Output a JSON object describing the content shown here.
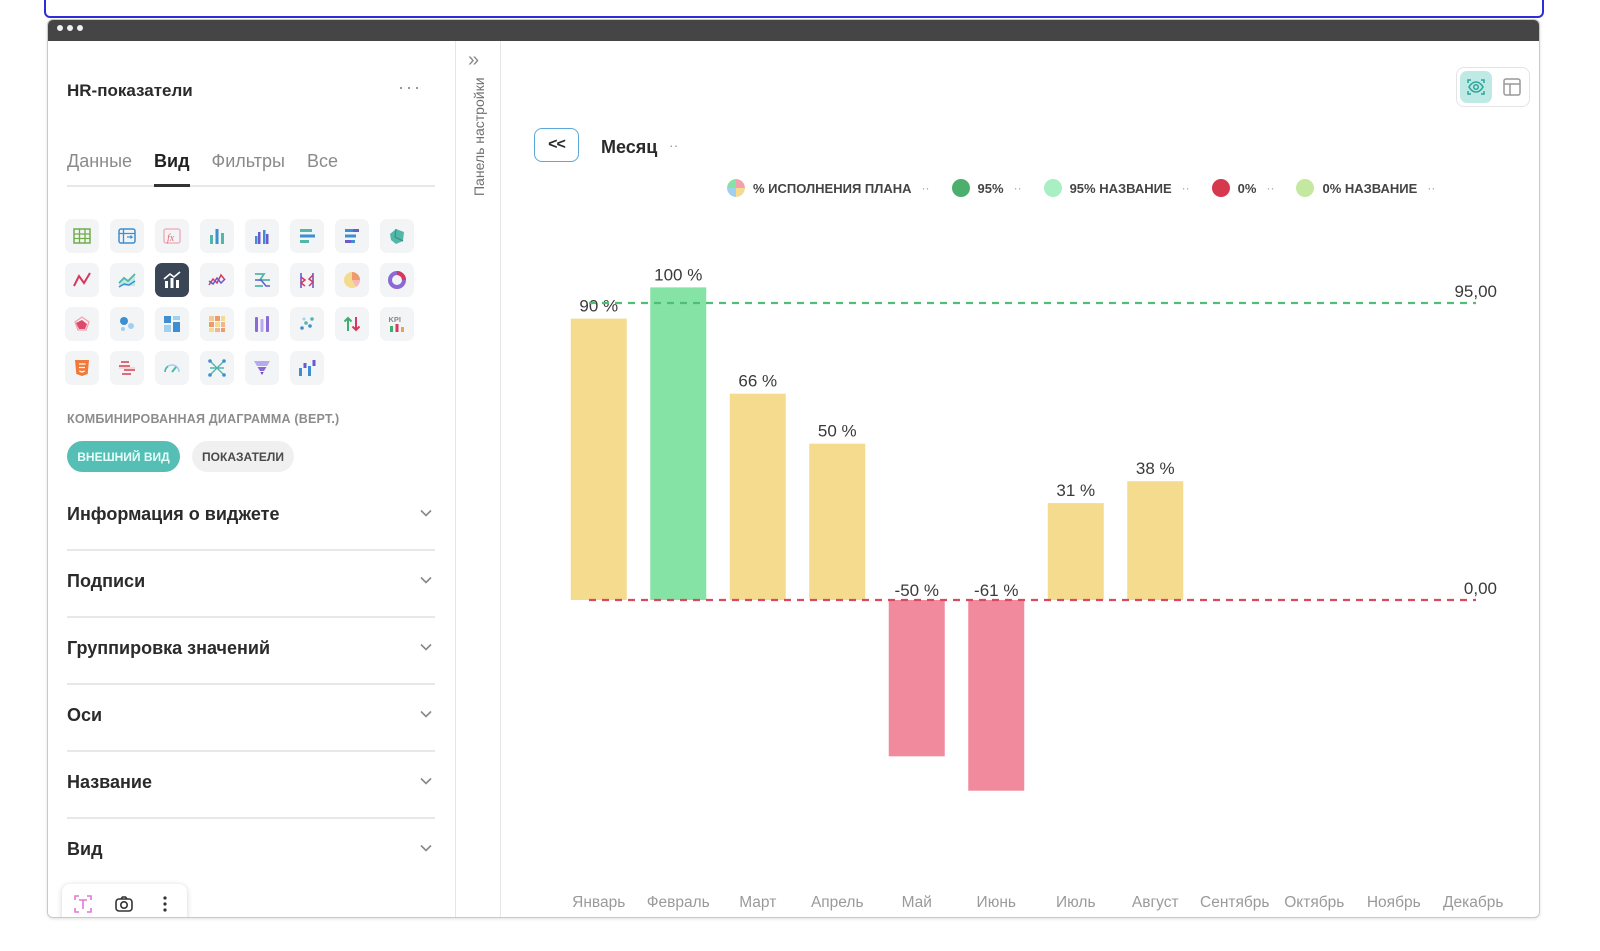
{
  "sidebar": {
    "title": "HR-показатели",
    "more": "···",
    "tabs": [
      {
        "label": "Данные"
      },
      {
        "label": "Вид"
      },
      {
        "label": "Фильтры"
      },
      {
        "label": "Все"
      }
    ],
    "active_tab": "Вид",
    "chart_icons": [
      "table-icon",
      "pivot-table-icon",
      "formula-icon",
      "bar-chart-icon",
      "grouped-bar-icon",
      "horizontal-bar-icon",
      "stacked-horizontal-bar-icon",
      "map-icon",
      "line-chart-icon",
      "area-chart-icon",
      "combo-chart-icon",
      "multi-line-icon",
      "horizontal-line-icon",
      "dual-line-icon",
      "pie-chart-icon",
      "donut-chart-icon",
      "radar-icon",
      "bubble-icon",
      "layout-icon",
      "heatmap-icon",
      "timeline-icon",
      "scatter-icon",
      "delta-icon",
      "kpi-icon",
      "html-icon",
      "gantt-icon",
      "gauge-icon",
      "network-icon",
      "funnel-icon",
      "waterfall-icon"
    ],
    "selected_chart_icon": "combo-chart-icon",
    "chart_type_label": "КОМБИНИРОВАННАЯ ДИАГРАММА (ВЕРТ.)",
    "pill_appearance": "ВНЕШНИЙ ВИД",
    "pill_indicators": "ПОКАЗАТЕЛИ",
    "sections": [
      {
        "label": "Информация о виджете"
      },
      {
        "label": "Подписи"
      },
      {
        "label": "Группировка значений"
      },
      {
        "label": "Оси"
      },
      {
        "label": "Название"
      },
      {
        "label": "Вид"
      }
    ]
  },
  "settings_panel": {
    "label": "Панель настройки",
    "expand": "»"
  },
  "toolbar": {
    "back_label": "<<",
    "period_label": "Месяц",
    "period_dots": "··"
  },
  "colors": {
    "bar_normal": "#f5db8e",
    "bar_target": "#86e3a6",
    "bar_negative": "#f08a9c",
    "target_line": "#4fbf78",
    "zero_line": "#d94a5e",
    "accent": "#55bfb6"
  },
  "legend": [
    {
      "label": "% ИСПОЛНЕНИЯ ПЛАНА",
      "color": "multi",
      "dots": "··"
    },
    {
      "label": "95%",
      "color": "#4caf6e",
      "dots": "··"
    },
    {
      "label": "95% НАЗВАНИЕ",
      "color": "#a8f0c4",
      "dots": "··"
    },
    {
      "label": "0%",
      "color": "#d6384e",
      "dots": "··"
    },
    {
      "label": "0% НАЗВАНИЕ",
      "color": "#c4e8a0",
      "dots": "··"
    }
  ],
  "chart_data": {
    "type": "bar",
    "categories": [
      "Январь",
      "Февраль",
      "Март",
      "Апрель",
      "Май",
      "Июнь",
      "Июль",
      "Август",
      "Сентябрь",
      "Октябрь",
      "Ноябрь",
      "Декабрь"
    ],
    "values": [
      90,
      100,
      66,
      50,
      -50,
      -61,
      31,
      38,
      null,
      null,
      null,
      null
    ],
    "data_labels": [
      "90 %",
      "100 %",
      "66 %",
      "50 %",
      "-50 %",
      "-61 %",
      "31 %",
      "38 %",
      "",
      "",
      "",
      ""
    ],
    "ylim": [
      -80,
      110
    ],
    "reference_lines": [
      {
        "value": 95,
        "label": "95,00"
      },
      {
        "value": 0,
        "label": "0,00"
      }
    ]
  }
}
